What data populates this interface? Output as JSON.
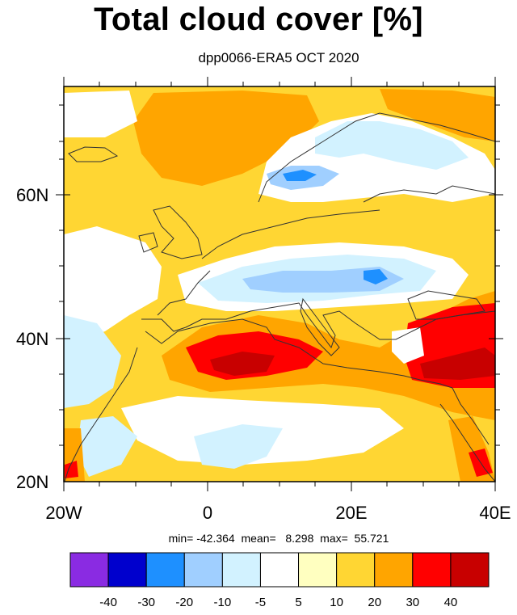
{
  "title": "Total cloud cover [%]",
  "subtitle": "dpp0066-ERA5 OCT 2020",
  "stats": "min= -42.364  mean=   8.298  max=  55.721",
  "lat_labels": [
    "60N",
    "40N",
    "20N"
  ],
  "lon_labels": [
    "20W",
    "0",
    "20E",
    "40E"
  ],
  "colorbar": {
    "labels": [
      "-40",
      "-30",
      "-20",
      "-10",
      "-5",
      "5",
      "10",
      "20",
      "30",
      "40"
    ],
    "colors": [
      "#8A2BE2",
      "#0000CD",
      "#1E90FF",
      "#A0CFFF",
      "#D2F2FF",
      "#FFFFFF",
      "#FFFFC0",
      "#FFD633",
      "#FFA500",
      "#FF0000",
      "#C80000"
    ]
  },
  "palette": {
    "land_outline": "#333333",
    "light_orange": "#FFD633",
    "orange": "#FFA500",
    "red": "#FF0000",
    "dark_red": "#C80000",
    "light_blue": "#D2F2FF",
    "mid_blue": "#A0CFFF",
    "blue": "#1E90FF"
  }
}
